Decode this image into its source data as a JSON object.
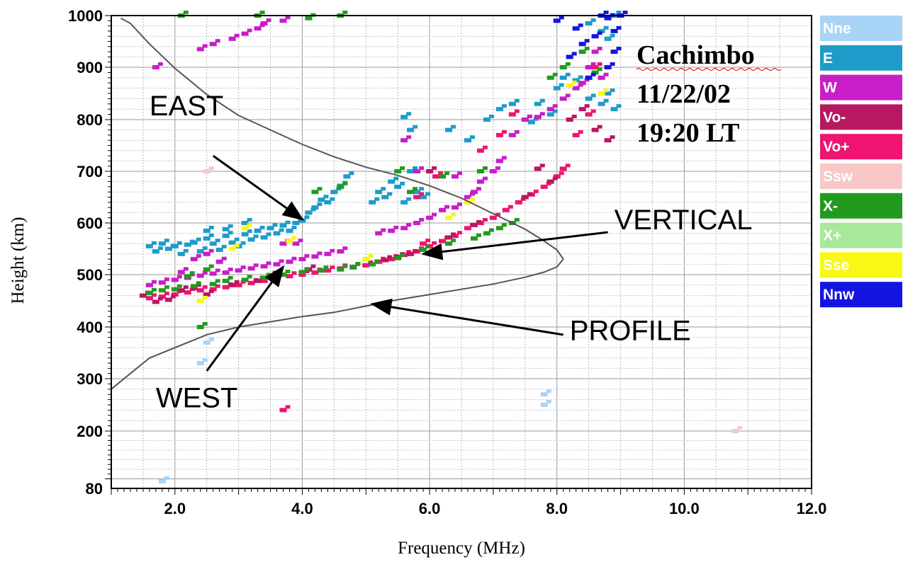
{
  "chart_data": {
    "type": "scatter",
    "title": "",
    "xlabel": "Frequency (MHz)",
    "ylabel": "Height (km)",
    "xlim": [
      1.0,
      12.0
    ],
    "ylim": [
      80,
      1000
    ],
    "x_ticks": [
      2.0,
      4.0,
      6.0,
      8.0,
      10.0,
      12.0
    ],
    "x_tick_labels": [
      "2.0",
      "4.0",
      "6.0",
      "8.0",
      "10.0",
      "12.0"
    ],
    "y_ticks": [
      80,
      200,
      300,
      400,
      500,
      600,
      700,
      800,
      900,
      1000
    ],
    "y_tick_labels": [
      "80",
      "200",
      "300",
      "400",
      "500",
      "600",
      "700",
      "800",
      "900",
      "1000"
    ],
    "grid": true,
    "info_lines": [
      "Cachimbo",
      "11/22/02",
      "19:20 LT"
    ],
    "legend_position": "right",
    "legend": [
      {
        "name": "Nne",
        "color": "#a8d4f8"
      },
      {
        "name": "E",
        "color": "#1e9bc8"
      },
      {
        "name": "W",
        "color": "#c81ec8"
      },
      {
        "name": "Vo-",
        "color": "#b81860"
      },
      {
        "name": "Vo+",
        "color": "#ee1470"
      },
      {
        "name": "Ssw",
        "color": "#f8c8c8"
      },
      {
        "name": "X-",
        "color": "#229a1e"
      },
      {
        "name": "X+",
        "color": "#a8e89a"
      },
      {
        "name": "Sse",
        "color": "#f8f814"
      },
      {
        "name": "Nnw",
        "color": "#1414e0"
      }
    ],
    "profile": {
      "x": [
        1.0,
        1.3,
        1.6,
        2.0,
        2.5,
        3.0,
        3.5,
        4.0,
        4.5,
        5.0,
        5.5,
        6.0,
        6.5,
        7.0,
        7.5,
        7.8,
        8.0,
        8.1,
        8.0,
        7.8,
        7.5,
        7.0,
        6.5,
        6.0,
        5.5,
        5.0,
        4.5,
        4.0,
        3.5,
        3.0,
        2.5,
        2.0,
        1.6,
        1.3,
        1.15
      ],
      "y": [
        280,
        310,
        340,
        360,
        385,
        400,
        410,
        420,
        428,
        440,
        452,
        462,
        472,
        482,
        495,
        505,
        515,
        530,
        548,
        565,
        588,
        618,
        648,
        672,
        692,
        708,
        728,
        752,
        780,
        808,
        848,
        898,
        945,
        985,
        995
      ]
    },
    "series": [
      {
        "name": "E",
        "points": [
          [
            1.6,
            555
          ],
          [
            1.7,
            545
          ],
          [
            1.8,
            560
          ],
          [
            1.9,
            550
          ],
          [
            2.0,
            555
          ],
          [
            2.1,
            540
          ],
          [
            2.2,
            558
          ],
          [
            2.3,
            562
          ],
          [
            2.4,
            545
          ],
          [
            2.5,
            570
          ],
          [
            2.6,
            560
          ],
          [
            2.7,
            548
          ],
          [
            2.8,
            575
          ],
          [
            2.9,
            562
          ],
          [
            3.0,
            555
          ],
          [
            3.1,
            578
          ],
          [
            3.2,
            568
          ],
          [
            3.3,
            585
          ],
          [
            3.4,
            572
          ],
          [
            3.5,
            590
          ],
          [
            3.6,
            580
          ],
          [
            3.7,
            595
          ],
          [
            3.8,
            585
          ],
          [
            3.9,
            600
          ],
          [
            4.0,
            605
          ],
          [
            4.1,
            620
          ],
          [
            4.2,
            630
          ],
          [
            4.3,
            645
          ],
          [
            4.4,
            640
          ],
          [
            4.5,
            660
          ],
          [
            4.6,
            672
          ],
          [
            4.7,
            690
          ],
          [
            5.1,
            640
          ],
          [
            5.2,
            660
          ],
          [
            5.3,
            650
          ],
          [
            5.4,
            680
          ],
          [
            5.5,
            670
          ],
          [
            5.6,
            640
          ],
          [
            5.7,
            700
          ],
          [
            5.8,
            660
          ],
          [
            5.9,
            650
          ],
          [
            5.7,
            780
          ],
          [
            5.6,
            805
          ],
          [
            6.3,
            780
          ],
          [
            6.6,
            760
          ],
          [
            6.9,
            800
          ],
          [
            7.1,
            820
          ],
          [
            7.3,
            830
          ],
          [
            7.5,
            800
          ],
          [
            7.6,
            795
          ],
          [
            7.7,
            830
          ],
          [
            7.9,
            810
          ],
          [
            8.0,
            860
          ],
          [
            8.1,
            880
          ],
          [
            8.3,
            875
          ],
          [
            8.5,
            840
          ],
          [
            8.7,
            830
          ],
          [
            8.8,
            850
          ],
          [
            8.9,
            820
          ],
          [
            8.5,
            985
          ],
          [
            8.7,
            970
          ],
          [
            8.8,
            955
          ],
          [
            8.9,
            1000
          ],
          [
            2.5,
            585
          ],
          [
            2.8,
            588
          ],
          [
            3.1,
            600
          ]
        ]
      },
      {
        "name": "W",
        "points": [
          [
            1.7,
            900
          ],
          [
            2.4,
            935
          ],
          [
            2.6,
            945
          ],
          [
            2.9,
            955
          ],
          [
            3.1,
            965
          ],
          [
            3.3,
            975
          ],
          [
            3.4,
            985
          ],
          [
            3.7,
            990
          ],
          [
            1.6,
            480
          ],
          [
            1.8,
            485
          ],
          [
            2.0,
            490
          ],
          [
            2.2,
            494
          ],
          [
            2.4,
            498
          ],
          [
            2.6,
            502
          ],
          [
            2.8,
            504
          ],
          [
            3.0,
            508
          ],
          [
            3.2,
            512
          ],
          [
            3.4,
            516
          ],
          [
            3.6,
            520
          ],
          [
            3.8,
            525
          ],
          [
            4.0,
            530
          ],
          [
            4.2,
            535
          ],
          [
            4.4,
            540
          ],
          [
            4.6,
            545
          ],
          [
            2.1,
            505
          ],
          [
            2.3,
            530
          ],
          [
            2.5,
            540
          ],
          [
            2.7,
            525
          ],
          [
            5.2,
            580
          ],
          [
            5.4,
            585
          ],
          [
            5.6,
            590
          ],
          [
            5.8,
            600
          ],
          [
            6.0,
            610
          ],
          [
            6.2,
            625
          ],
          [
            6.4,
            630
          ],
          [
            6.6,
            650
          ],
          [
            6.8,
            680
          ],
          [
            7.0,
            700
          ],
          [
            7.1,
            720
          ],
          [
            7.3,
            770
          ],
          [
            7.5,
            800
          ],
          [
            7.7,
            805
          ],
          [
            7.9,
            820
          ],
          [
            8.1,
            840
          ],
          [
            8.3,
            860
          ],
          [
            8.4,
            870
          ],
          [
            8.5,
            900
          ],
          [
            8.6,
            930
          ],
          [
            8.7,
            880
          ],
          [
            6.4,
            690
          ],
          [
            6.7,
            660
          ],
          [
            5.6,
            760
          ],
          [
            5.8,
            700
          ],
          [
            3.7,
            560
          ],
          [
            3.9,
            560
          ]
        ]
      },
      {
        "name": "Vo+",
        "points": [
          [
            1.6,
            455
          ],
          [
            1.8,
            458
          ],
          [
            2.0,
            462
          ],
          [
            2.2,
            466
          ],
          [
            2.4,
            470
          ],
          [
            2.6,
            472
          ],
          [
            2.8,
            476
          ],
          [
            3.0,
            480
          ],
          [
            3.2,
            484
          ],
          [
            3.4,
            488
          ],
          [
            3.6,
            494
          ],
          [
            3.8,
            497
          ],
          [
            4.0,
            500
          ],
          [
            4.2,
            504
          ],
          [
            4.4,
            508
          ],
          [
            4.6,
            512
          ],
          [
            4.8,
            514
          ],
          [
            5.0,
            518
          ],
          [
            5.2,
            525
          ],
          [
            5.4,
            530
          ],
          [
            5.6,
            538
          ],
          [
            5.8,
            545
          ],
          [
            6.0,
            555
          ],
          [
            6.2,
            565
          ],
          [
            6.4,
            575
          ],
          [
            6.6,
            590
          ],
          [
            6.8,
            600
          ],
          [
            7.0,
            610
          ],
          [
            7.2,
            625
          ],
          [
            7.4,
            640
          ],
          [
            7.6,
            655
          ],
          [
            7.8,
            670
          ],
          [
            8.0,
            690
          ],
          [
            8.1,
            705
          ],
          [
            6.8,
            740
          ],
          [
            7.1,
            770
          ],
          [
            7.3,
            810
          ],
          [
            8.3,
            770
          ],
          [
            8.5,
            810
          ],
          [
            8.6,
            900
          ],
          [
            5.8,
            650
          ],
          [
            6.1,
            690
          ],
          [
            5.9,
            560
          ],
          [
            3.7,
            240
          ]
        ]
      },
      {
        "name": "Vo-",
        "points": [
          [
            1.5,
            460
          ],
          [
            1.7,
            448
          ],
          [
            1.9,
            452
          ],
          [
            2.1,
            470
          ],
          [
            2.3,
            474
          ],
          [
            2.5,
            462
          ],
          [
            2.9,
            480
          ],
          [
            3.3,
            488
          ],
          [
            3.5,
            498
          ],
          [
            4.1,
            510
          ],
          [
            5.3,
            528
          ],
          [
            5.5,
            534
          ],
          [
            5.7,
            540
          ],
          [
            6.3,
            572
          ],
          [
            6.7,
            596
          ],
          [
            7.5,
            650
          ],
          [
            7.9,
            680
          ],
          [
            8.2,
            800
          ],
          [
            8.4,
            820
          ],
          [
            8.6,
            780
          ],
          [
            8.8,
            760
          ],
          [
            7.7,
            705
          ],
          [
            6.0,
            700
          ]
        ]
      },
      {
        "name": "X-",
        "points": [
          [
            1.6,
            465
          ],
          [
            1.8,
            470
          ],
          [
            2.0,
            472
          ],
          [
            2.3,
            478
          ],
          [
            2.6,
            482
          ],
          [
            2.8,
            488
          ],
          [
            3.1,
            490
          ],
          [
            3.4,
            494
          ],
          [
            3.7,
            500
          ],
          [
            4.0,
            505
          ],
          [
            4.3,
            508
          ],
          [
            4.6,
            510
          ],
          [
            4.8,
            515
          ],
          [
            5.1,
            520
          ],
          [
            5.5,
            532
          ],
          [
            5.9,
            548
          ],
          [
            6.3,
            560
          ],
          [
            6.7,
            570
          ],
          [
            6.9,
            580
          ],
          [
            7.1,
            590
          ],
          [
            7.3,
            600
          ],
          [
            4.6,
            670
          ],
          [
            4.2,
            660
          ],
          [
            5.5,
            700
          ],
          [
            5.7,
            660
          ],
          [
            6.2,
            690
          ],
          [
            6.8,
            700
          ],
          [
            7.9,
            880
          ],
          [
            8.1,
            900
          ],
          [
            8.4,
            930
          ],
          [
            8.6,
            890
          ],
          [
            2.1,
            1000
          ],
          [
            3.3,
            1000
          ],
          [
            4.1,
            995
          ],
          [
            4.6,
            1000
          ],
          [
            2.4,
            400
          ],
          [
            2.2,
            497
          ],
          [
            2.5,
            510
          ]
        ]
      },
      {
        "name": "Nnw",
        "points": [
          [
            8.7,
            1000
          ],
          [
            8.8,
            995
          ],
          [
            8.9,
            970
          ],
          [
            8.6,
            960
          ],
          [
            8.4,
            945
          ],
          [
            8.2,
            920
          ],
          [
            8.9,
            930
          ],
          [
            8.8,
            900
          ],
          [
            9.0,
            1000
          ],
          [
            8.5,
            880
          ],
          [
            8.3,
            975
          ],
          [
            8.0,
            990
          ]
        ]
      },
      {
        "name": "Sse",
        "points": [
          [
            5.0,
            530
          ],
          [
            2.9,
            550
          ],
          [
            3.8,
            565
          ],
          [
            6.3,
            610
          ],
          [
            6.6,
            640
          ],
          [
            8.2,
            865
          ],
          [
            8.7,
            850
          ],
          [
            3.1,
            590
          ],
          [
            2.4,
            450
          ]
        ]
      },
      {
        "name": "Ssw",
        "points": [
          [
            10.8,
            200
          ],
          [
            2.5,
            700
          ]
        ]
      },
      {
        "name": "Nne",
        "points": [
          [
            2.5,
            370
          ],
          [
            7.8,
            270
          ],
          [
            7.8,
            250
          ],
          [
            1.8,
            95
          ],
          [
            2.4,
            330
          ]
        ]
      }
    ]
  },
  "annotations": [
    {
      "label": "EAST",
      "text_at": [
        1.6,
        808
      ],
      "arrow_from": [
        2.6,
        730
      ],
      "arrow_to": [
        4.0,
        607
      ]
    },
    {
      "label": "WEST",
      "text_at": [
        1.7,
        245
      ],
      "arrow_from": [
        2.5,
        315
      ],
      "arrow_to": [
        3.7,
        515
      ]
    },
    {
      "label": "VERTICAL",
      "text_at": [
        8.9,
        588
      ],
      "arrow_from": [
        8.8,
        582
      ],
      "arrow_to": [
        5.9,
        540
      ]
    },
    {
      "label": "PROFILE",
      "text_at": [
        8.2,
        375
      ],
      "arrow_from": [
        8.1,
        385
      ],
      "arrow_to": [
        5.1,
        444
      ]
    }
  ]
}
